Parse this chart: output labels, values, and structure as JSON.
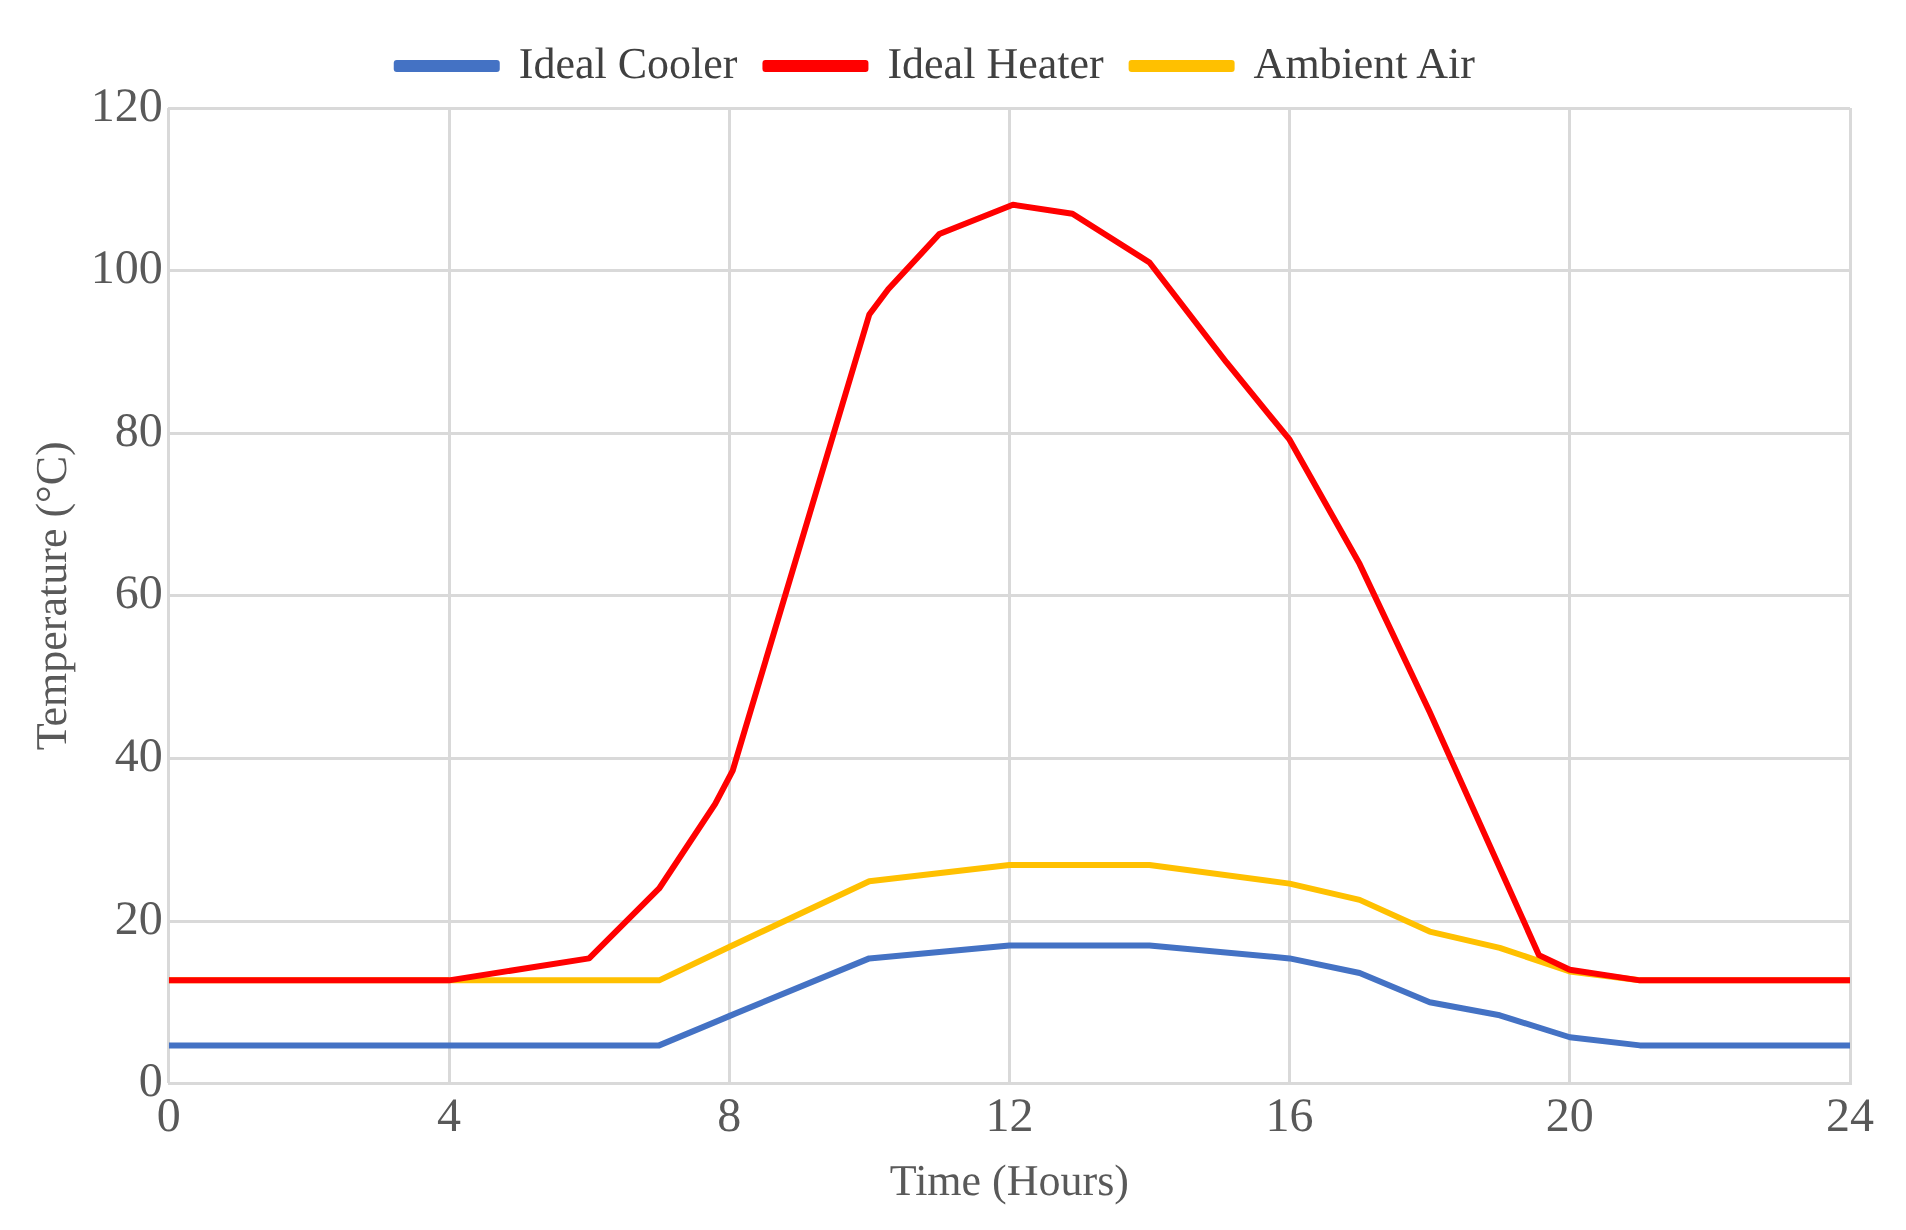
{
  "chart_data": {
    "type": "line",
    "xlabel": "Time (Hours)",
    "ylabel": "Temperature (°C)",
    "xlim": [
      0,
      24
    ],
    "xticks": [
      0,
      4,
      8,
      12,
      16,
      20,
      24
    ],
    "ylim": [
      0,
      120
    ],
    "yticks": [
      0,
      20,
      40,
      60,
      80,
      100,
      120
    ],
    "grid": true,
    "legend": "top",
    "marker": "none",
    "line_style": "solid",
    "series": [
      {
        "name": "Ideal Cooler",
        "color": "#4472c4",
        "x": [
          0,
          4,
          7,
          8,
          10,
          12,
          14,
          16,
          17,
          18,
          19,
          20,
          21,
          24
        ],
        "values": [
          4.7,
          4.7,
          4.7,
          8.3,
          15.4,
          17,
          17,
          15.4,
          13.6,
          10,
          8.4,
          5.7,
          4.7,
          4.7
        ]
      },
      {
        "name": "Ideal Heater",
        "color": "#ff0000",
        "x": [
          0,
          4,
          6,
          7,
          7.8,
          8.05,
          10,
          10.27,
          11,
          12.05,
          12.9,
          14,
          15.1,
          16,
          17,
          18,
          19.56,
          20,
          21,
          24
        ],
        "values": [
          12.7,
          12.7,
          15.4,
          24,
          34.4,
          38.5,
          94.6,
          97.7,
          104.5,
          108.1,
          107,
          101,
          88.7,
          79.2,
          63.9,
          45.7,
          15.8,
          14,
          12.7,
          12.7
        ]
      },
      {
        "name": "Ambient Air",
        "color": "#ffc000",
        "x": [
          0,
          4,
          7,
          8,
          10,
          12,
          14,
          16,
          17,
          18,
          19,
          20,
          21,
          24
        ],
        "values": [
          12.7,
          12.7,
          12.7,
          16.8,
          24.9,
          26.9,
          26.9,
          24.6,
          22.6,
          18.7,
          16.7,
          13.8,
          12.7,
          12.7
        ]
      }
    ]
  }
}
